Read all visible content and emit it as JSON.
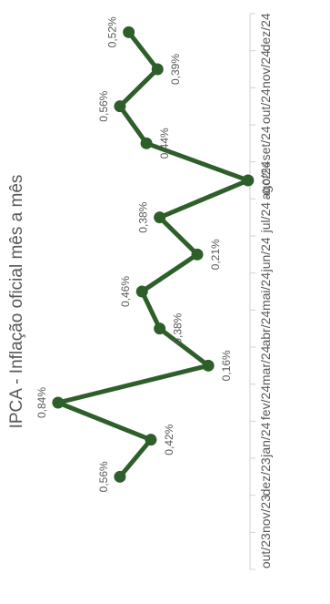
{
  "chart_data": {
    "type": "line",
    "title": "IPCA - Inflação oficial mês a mês",
    "categories": [
      "out/23",
      "nov/23",
      "dez/23",
      "jan/24",
      "fev/24",
      "mar/24",
      "abr/24",
      "mai/24",
      "jun/24",
      "jul/24",
      "ago/24",
      "set/24",
      "out/24",
      "nov/24",
      "dez/24"
    ],
    "values": [
      null,
      null,
      0.56,
      0.42,
      0.84,
      0.16,
      0.38,
      0.46,
      0.21,
      0.38,
      -0.02,
      0.44,
      0.56,
      0.39,
      0.52
    ],
    "data_labels": [
      "",
      "",
      "0,56%",
      "0,42%",
      "0,84%",
      "0,16%",
      "0,38%",
      "0,46%",
      "0,21%",
      "0,38%",
      "-0,02%",
      "0,44%",
      "0,56%",
      "0,39%",
      "0,52%"
    ],
    "series_color": "#2e5e2a",
    "grid": false,
    "legend": "none"
  }
}
